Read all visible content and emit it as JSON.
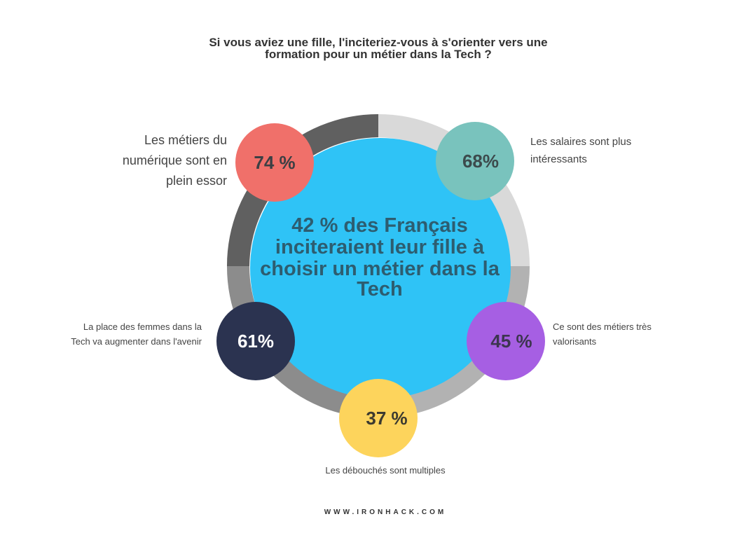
{
  "chart_data": {
    "type": "infographic-ring",
    "title_line1": "Si vous aviez une fille, l'inciteriez-vous à s'orienter vers une",
    "title_line2": "formation pour un métier dans la Tech ?",
    "center": {
      "lines": [
        "42 % des Français",
        "inciteraient leur fille à",
        "choisir un métier dans la",
        "Tech"
      ],
      "value": 42
    },
    "items": [
      {
        "value_label": "74 %",
        "value": 74,
        "label_lines": [
          "Les métiers du",
          "numérique sont en",
          "plein essor"
        ],
        "color": "#f0706a"
      },
      {
        "value_label": "68%",
        "value": 68,
        "label_lines": [
          "Les salaires sont plus",
          "intéressants"
        ],
        "color": "#79c3bd"
      },
      {
        "value_label": "45 %",
        "value": 45,
        "label_lines": [
          "Ce sont des métiers très",
          "valorisants"
        ],
        "color": "#a65fe3"
      },
      {
        "value_label": "37 %",
        "value": 37,
        "label_lines": [
          "Les débouchés sont multiples"
        ],
        "color": "#fdd45c"
      },
      {
        "value_label": "61%",
        "value": 61,
        "label_lines": [
          "La place des femmes dans la",
          "Tech va augmenter dans l'avenir"
        ],
        "color": "#2b3350"
      }
    ],
    "center_color": "#2fc3f6"
  },
  "footer": "WWW.IRONHACK.COM"
}
